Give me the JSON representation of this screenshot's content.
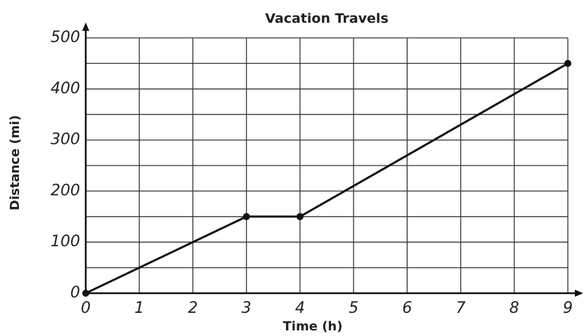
{
  "chart_data": {
    "type": "line",
    "title": "Vacation Travels",
    "x_label": "Time (h)",
    "y_label": "Distance (mi)",
    "x": [
      0,
      3,
      4,
      9
    ],
    "series": [
      {
        "color": "#111111",
        "values": [
          0,
          150,
          150,
          450
        ]
      }
    ],
    "xlim": [
      0,
      9
    ],
    "xticks": [
      0,
      1,
      2,
      3,
      4,
      5,
      6,
      7,
      8,
      9
    ],
    "ylim": [
      0,
      500
    ],
    "yticks": [
      0,
      100,
      200,
      300,
      400,
      500
    ],
    "yminorticks": [
      50,
      150,
      250,
      350,
      450
    ],
    "grid": true,
    "markers": true
  }
}
